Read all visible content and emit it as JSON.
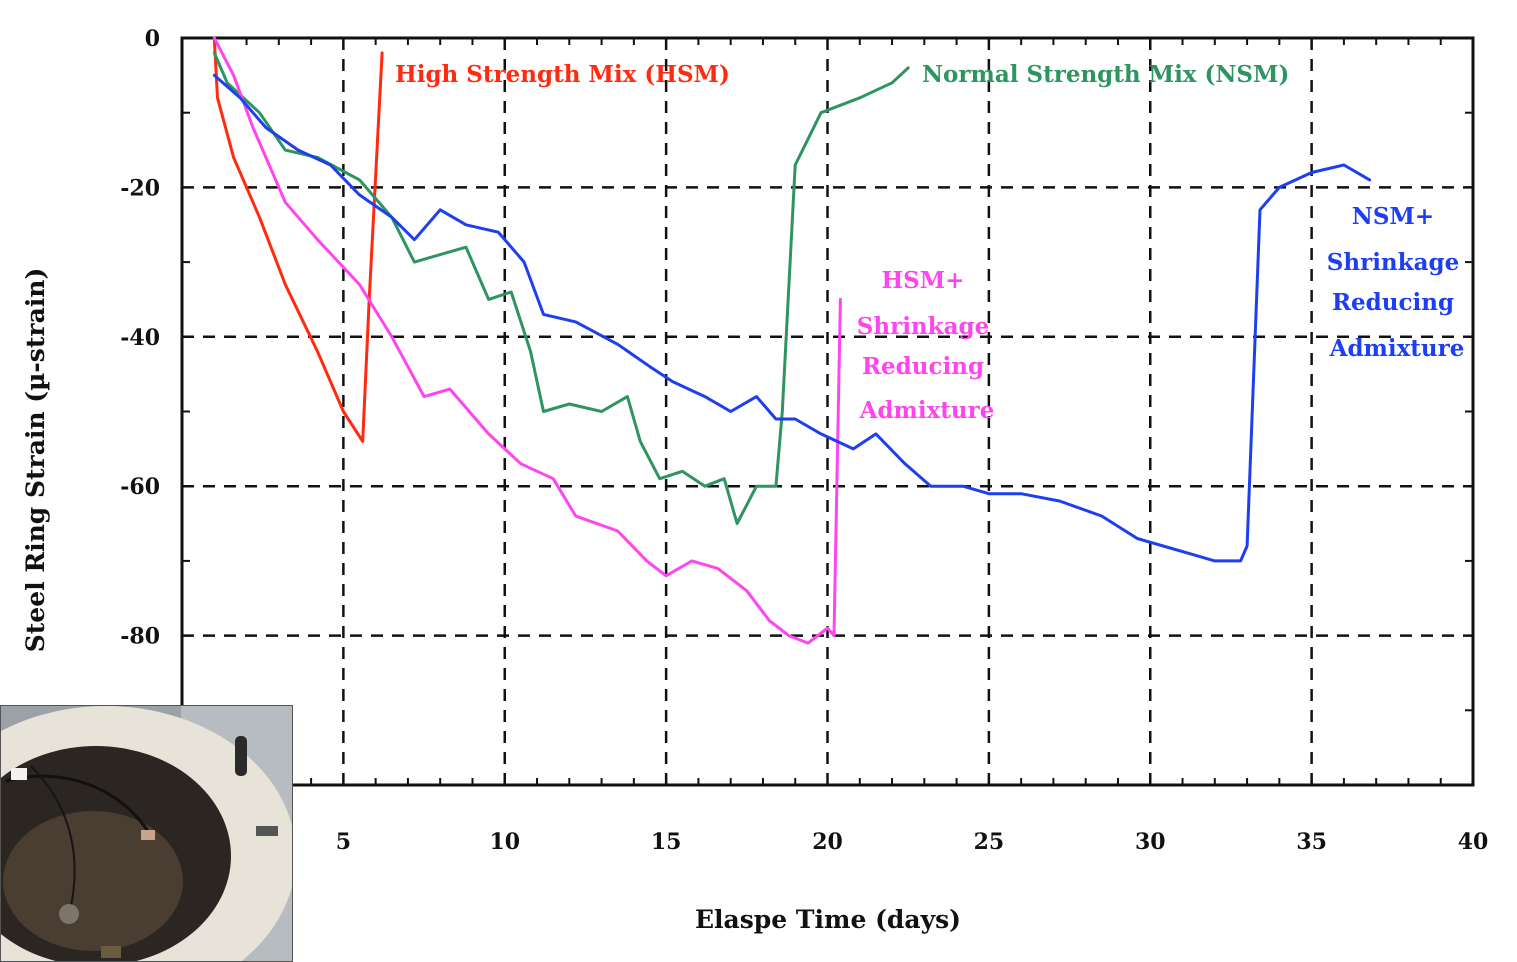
{
  "chart_data": {
    "type": "line",
    "xlabel": "Elaspe Time (days)",
    "ylabel": "Steel Ring Strain (µ-strain)",
    "xlim": [
      0,
      40
    ],
    "ylim": [
      -100,
      0
    ],
    "x_ticks": [
      "5",
      "10",
      "15",
      "20",
      "25",
      "30",
      "35",
      "40"
    ],
    "y_ticks": [
      "0",
      "-20",
      "-40",
      "-60",
      "-80"
    ],
    "grid": true,
    "series": [
      {
        "label": "High Strength Mix (HSM)",
        "color": "#ff2a10",
        "x": [
          1,
          1.1,
          1.6,
          2.4,
          3.2,
          4.2,
          5.0,
          5.6,
          5.8,
          6.2
        ],
        "y": [
          0,
          -8,
          -16,
          -24,
          -33,
          -42,
          -50,
          -54,
          -35,
          -2
        ]
      },
      {
        "label": "Normal Strength Mix (NSM)",
        "color": "#2e9460",
        "x": [
          1,
          1.4,
          2.4,
          3.2,
          4.2,
          5.5,
          6.5,
          7.2,
          8.0,
          8.8,
          9.5,
          10.2,
          10.8,
          11.2,
          12.0,
          13.0,
          13.8,
          14.2,
          14.8,
          15.5,
          16.2,
          16.8,
          17.2,
          17.8,
          18.4,
          18.6,
          19.0,
          19.8,
          21.0,
          22.0,
          22.5
        ],
        "y": [
          -2,
          -6,
          -10,
          -15,
          -16,
          -19,
          -24,
          -30,
          -29,
          -28,
          -35,
          -34,
          -42,
          -50,
          -49,
          -50,
          -48,
          -54,
          -59,
          -58,
          -60,
          -59,
          -65,
          -60,
          -60,
          -50,
          -17,
          -10,
          -8,
          -6,
          -4
        ]
      },
      {
        "label": "HSM+ Shrinkage Reducing Admixture",
        "color": "#ff45ee",
        "x": [
          1,
          1.6,
          2.2,
          3.2,
          4.2,
          5.5,
          6.5,
          7.5,
          8.3,
          9.5,
          10.5,
          11.5,
          12.2,
          13.5,
          14.4,
          15.0,
          15.8,
          16.6,
          17.5,
          18.2,
          18.8,
          19.4,
          20.0,
          20.2,
          20.4
        ],
        "y": [
          0,
          -5,
          -12,
          -22,
          -27,
          -33,
          -40,
          -48,
          -47,
          -53,
          -57,
          -59,
          -64,
          -66,
          -70,
          -72,
          -70,
          -71,
          -74,
          -78,
          -80,
          -81,
          -79,
          -80,
          -35
        ]
      },
      {
        "label": "NSM+ Shrinkage Reducing Admixture",
        "color": "#1e3ff0",
        "x": [
          1,
          1.8,
          2.6,
          3.6,
          4.6,
          5.5,
          6.5,
          7.2,
          8.0,
          8.8,
          9.8,
          10.6,
          11.2,
          12.2,
          13.5,
          14.5,
          15.2,
          16.2,
          17.0,
          17.8,
          18.4,
          19.0,
          19.8,
          20.8,
          21.5,
          22.4,
          23.2,
          24.2,
          25.0,
          26.0,
          27.2,
          28.5,
          29.6,
          30.4,
          31.2,
          32.0,
          32.8,
          33.0,
          33.4,
          34.0,
          35.0,
          36.0,
          36.8
        ],
        "y": [
          -5,
          -8,
          -12,
          -15,
          -17,
          -21,
          -24,
          -27,
          -23,
          -25,
          -26,
          -30,
          -37,
          -38,
          -41,
          -44,
          -46,
          -48,
          -50,
          -48,
          -51,
          -51,
          -53,
          -55,
          -53,
          -57,
          -60,
          -60,
          -61,
          -61,
          -62,
          -64,
          -67,
          -68,
          -69,
          -70,
          -70,
          -68,
          -23,
          -20,
          -18,
          -17,
          -19
        ]
      }
    ]
  }
}
